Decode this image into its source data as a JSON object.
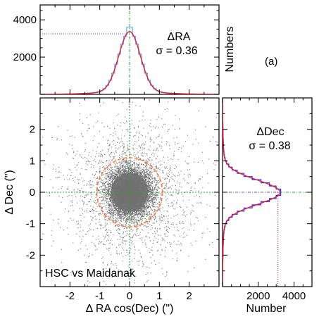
{
  "panel_label": "(a)",
  "colors": {
    "scatter": "#707070",
    "hist": "#6aa6ff",
    "gauss_fit": "#e0202a",
    "guide_green": "#2aa52a",
    "guide_magenta": "#b000b0",
    "circle": "#ff7b3a",
    "hist_blue": "#2a2aff"
  },
  "chart_data": [
    {
      "id": "top",
      "type": "histogram",
      "xlim": [
        -3.0,
        3.0
      ],
      "ylim": [
        0,
        4800
      ],
      "yticks": [
        2000,
        4000
      ],
      "ylabel": "Numbers",
      "annotation": [
        "ΔRA",
        "σ = 0.36"
      ],
      "sigma": 0.36,
      "peak": 3250,
      "hist_peak": 3600,
      "guide_y": 3250
    },
    {
      "id": "main",
      "type": "scatter",
      "xlim": [
        -3.0,
        3.0
      ],
      "ylim": [
        -3.0,
        3.0
      ],
      "xticks": [
        -2,
        -1,
        0,
        1,
        2
      ],
      "yticks": [
        -2,
        -1,
        0,
        1,
        2
      ],
      "xlabel": "Δ RA cos(Dec) (\")",
      "ylabel": "Δ Dec (\")",
      "annotation": "HSC vs Maidanak",
      "sigma_ra": 0.36,
      "sigma_dec": 0.38,
      "circle_radius": 1.1
    },
    {
      "id": "right",
      "type": "histogram",
      "orientation": "horizontal",
      "xlim": [
        0,
        5000
      ],
      "ylim": [
        -3.0,
        3.0
      ],
      "xticks": [
        2000,
        4000
      ],
      "xlabel": "Number",
      "annotation": [
        "ΔDec",
        "σ = 0.38"
      ],
      "sigma": 0.38,
      "peak": 3100,
      "hist_peak": 3250,
      "guide_x": 3100
    }
  ]
}
